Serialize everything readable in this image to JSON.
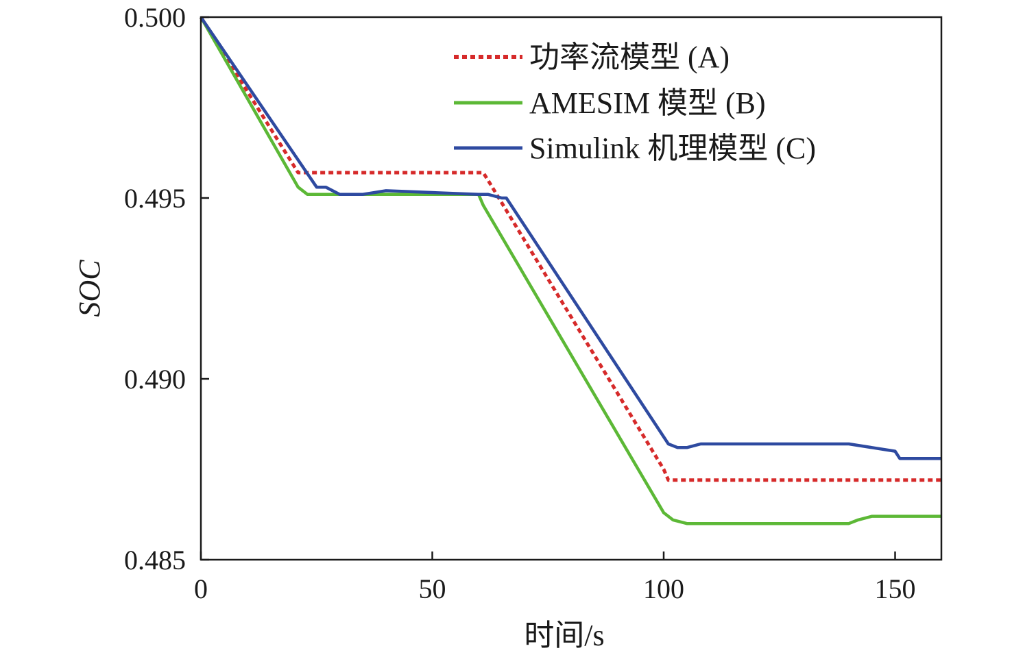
{
  "chart_data": {
    "type": "line",
    "title": "",
    "xlabel": "时间/s",
    "ylabel": "SOC",
    "xlim": [
      0,
      160
    ],
    "ylim": [
      0.485,
      0.5
    ],
    "xticks": [
      0,
      50,
      100,
      150
    ],
    "xtick_labels": [
      "0",
      "50",
      "100",
      "150"
    ],
    "yticks": [
      0.485,
      0.49,
      0.495,
      0.5
    ],
    "ytick_labels": [
      "0.485",
      "0.490",
      "0.495",
      "0.500"
    ],
    "grid": false,
    "legend_position": "top-right",
    "series": [
      {
        "name": "功率流模型 (A)",
        "color": "#d62a2a",
        "style": "dotted",
        "x": [
          0,
          21,
          61,
          62,
          100,
          101,
          160
        ],
        "y": [
          0.5,
          0.4957,
          0.4957,
          0.4955,
          0.4875,
          0.4872,
          0.4872
        ]
      },
      {
        "name": "AMESIM 模型 (B)",
        "color": "#5cb836",
        "style": "solid",
        "x": [
          0,
          21,
          23,
          30,
          60,
          61,
          100,
          102,
          105,
          140,
          142,
          145,
          150,
          160
        ],
        "y": [
          0.5,
          0.4953,
          0.4951,
          0.4951,
          0.4951,
          0.4948,
          0.4863,
          0.4861,
          0.486,
          0.486,
          0.4861,
          0.4862,
          0.4862,
          0.4862
        ]
      },
      {
        "name": "Simulink 机理模型 (C)",
        "color": "#2e4aa0",
        "style": "solid",
        "x": [
          0,
          25,
          27,
          30,
          35,
          40,
          60,
          62,
          65,
          66,
          101,
          103,
          105,
          108,
          140,
          145,
          150,
          151,
          160
        ],
        "y": [
          0.5,
          0.4953,
          0.4953,
          0.4951,
          0.4951,
          0.4952,
          0.4951,
          0.4951,
          0.495,
          0.495,
          0.4882,
          0.4881,
          0.4881,
          0.4882,
          0.4882,
          0.4881,
          0.488,
          0.4878,
          0.4878
        ]
      }
    ]
  }
}
